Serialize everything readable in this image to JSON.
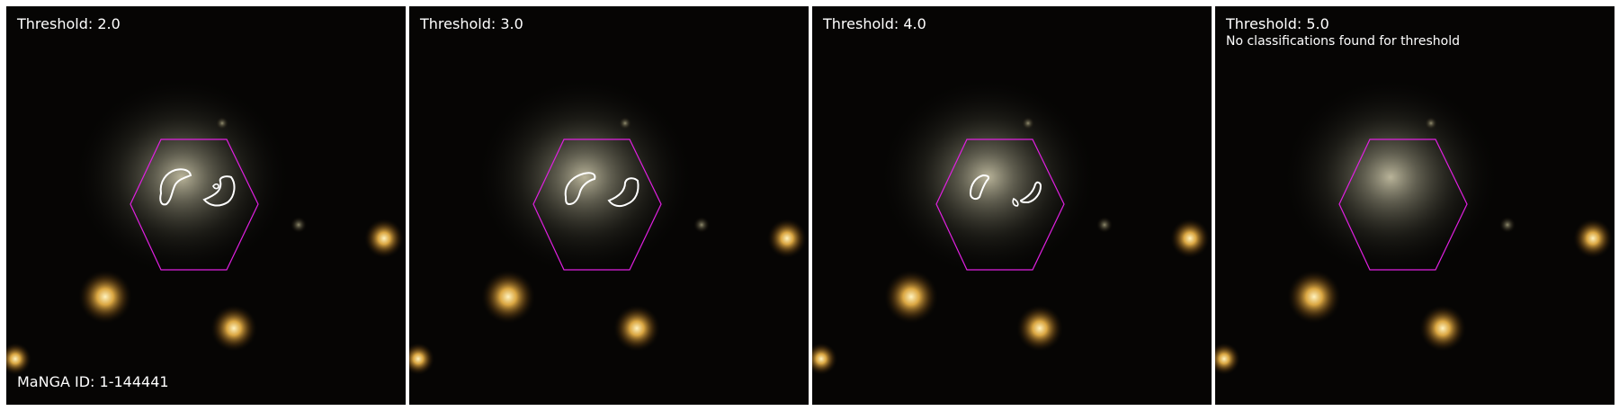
{
  "panels": [
    {
      "threshold_label": "Threshold: 2.0",
      "note": ""
    },
    {
      "threshold_label": "Threshold: 3.0",
      "note": ""
    },
    {
      "threshold_label": "Threshold: 4.0",
      "note": ""
    },
    {
      "threshold_label": "Threshold: 5.0",
      "note": "No classifications found for threshold"
    }
  ],
  "manga_id_label": "MaNGA ID: 1-144441",
  "colors": {
    "background": "#060504",
    "hexagon": "#e020e0",
    "contour": "#ffffff",
    "galaxy_core": "#e8e2c8",
    "star": "#f2b94a"
  }
}
